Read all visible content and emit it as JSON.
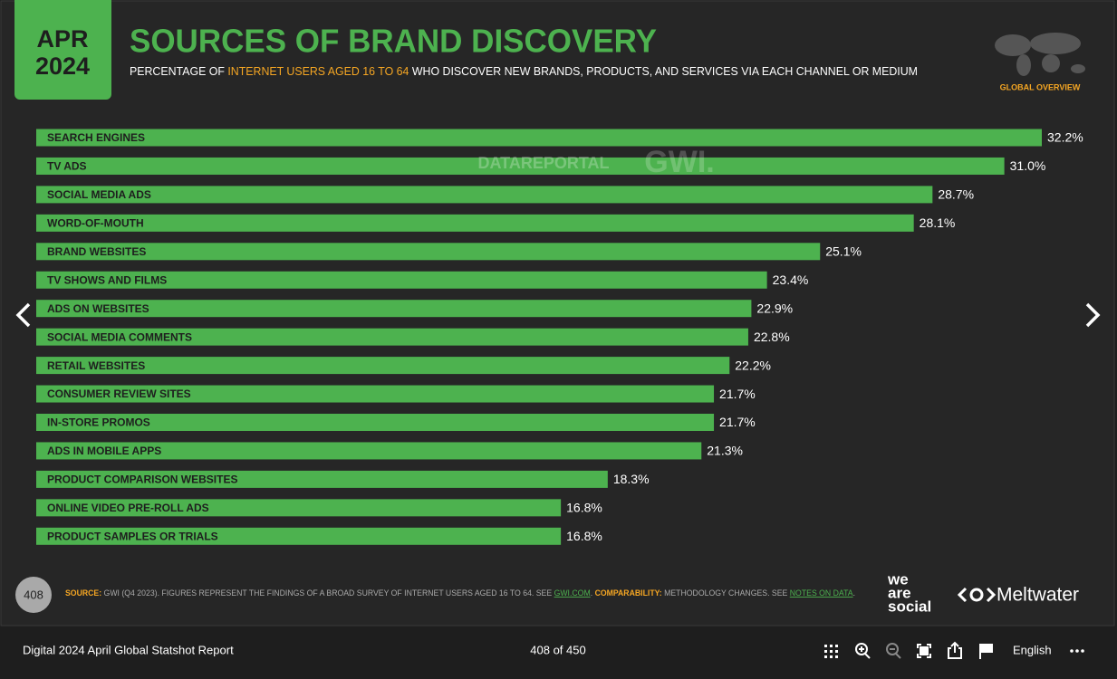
{
  "badge": {
    "month": "APR",
    "year": "2024"
  },
  "chart_data": {
    "type": "bar",
    "orientation": "horizontal",
    "title": "SOURCES OF BRAND DISCOVERY",
    "subtitle": [
      "PERCENTAGE OF ",
      "INTERNET USERS AGED 16 TO 64",
      " WHO DISCOVER NEW BRANDS, PRODUCTS, AND SERVICES VIA EACH CHANNEL OR MEDIUM"
    ],
    "categories": [
      "SEARCH ENGINES",
      "TV ADS",
      "SOCIAL MEDIA ADS",
      "WORD-OF-MOUTH",
      "BRAND WEBSITES",
      "TV SHOWS AND FILMS",
      "ADS ON WEBSITES",
      "SOCIAL MEDIA COMMENTS",
      "RETAIL WEBSITES",
      "CONSUMER REVIEW SITES",
      "IN-STORE PROMOS",
      "ADS IN MOBILE APPS",
      "PRODUCT COMPARISON WEBSITES",
      "ONLINE VIDEO PRE-ROLL ADS",
      "PRODUCT SAMPLES OR TRIALS"
    ],
    "values": [
      32.2,
      31.0,
      28.7,
      28.1,
      25.1,
      23.4,
      22.9,
      22.8,
      22.2,
      21.7,
      21.7,
      21.3,
      18.3,
      16.8,
      16.8
    ],
    "value_labels": [
      "32.2%",
      "31.0%",
      "28.7%",
      "28.1%",
      "25.1%",
      "23.4%",
      "22.9%",
      "22.8%",
      "22.2%",
      "21.7%",
      "21.7%",
      "21.3%",
      "18.3%",
      "16.8%",
      "16.8%"
    ],
    "color": "#4db24f",
    "xlim": [
      0,
      32.2
    ]
  },
  "region_label": "GLOBAL OVERVIEW",
  "watermarks": [
    "DATAREPORTAL",
    "GWI."
  ],
  "slide_number": "408",
  "footnote": [
    "SOURCE:",
    " GWI (Q4 2023). FIGURES REPRESENT THE FINDINGS OF A BROAD SURVEY OF INTERNET USERS AGED 16 TO 64. SEE ",
    "GWI.COM",
    ". ",
    "COMPARABILITY:",
    " METHODOLOGY CHANGES. SEE ",
    "NOTES ON DATA",
    "."
  ],
  "logos": [
    "we",
    "are",
    "social",
    "Meltwater"
  ],
  "toolbar": {
    "report_title": "Digital 2024 April Global Statshot Report",
    "page": "408 of 450",
    "language": "English"
  }
}
